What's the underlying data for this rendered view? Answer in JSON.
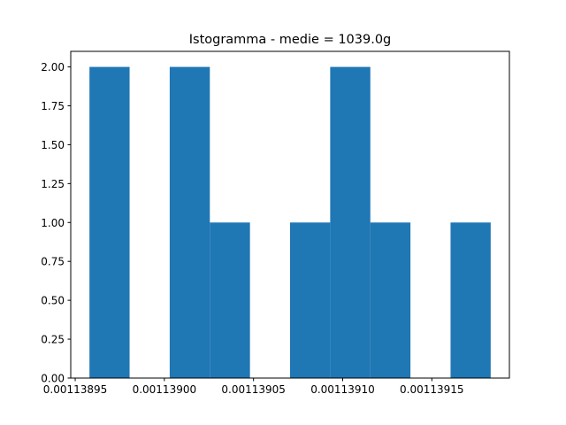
{
  "chart_data": {
    "type": "bar",
    "title": "Istogramma - medie = 1039.0g",
    "xlabel": "",
    "ylabel": "",
    "bins": [
      {
        "x0": 0.001138958,
        "x1": 0.0011389805,
        "count": 2
      },
      {
        "x0": 0.0011389805,
        "x1": 0.001139003,
        "count": 0
      },
      {
        "x0": 0.001139003,
        "x1": 0.0011390255,
        "count": 2
      },
      {
        "x0": 0.0011390255,
        "x1": 0.001139048,
        "count": 1
      },
      {
        "x0": 0.001139048,
        "x1": 0.0011390705,
        "count": 0
      },
      {
        "x0": 0.0011390705,
        "x1": 0.001139093,
        "count": 1
      },
      {
        "x0": 0.001139093,
        "x1": 0.0011391155,
        "count": 2
      },
      {
        "x0": 0.0011391155,
        "x1": 0.001139138,
        "count": 1
      },
      {
        "x0": 0.001139138,
        "x1": 0.0011391605,
        "count": 0
      },
      {
        "x0": 0.0011391605,
        "x1": 0.001139183,
        "count": 1
      }
    ],
    "xlim": [
      0.0011389475,
      0.0011391935
    ],
    "ylim": [
      0,
      2.1
    ],
    "xticks": [
      0.00113895,
      0.001139,
      0.00113905,
      0.0011391,
      0.00113915
    ],
    "xtick_labels": [
      "0.00113895",
      "0.00113900",
      "0.00113905",
      "0.00113910",
      "0.00113915"
    ],
    "yticks": [
      0,
      0.25,
      0.5,
      0.75,
      1.0,
      1.25,
      1.5,
      1.75,
      2.0
    ],
    "ytick_labels": [
      "0.00",
      "0.25",
      "0.50",
      "0.75",
      "1.00",
      "1.25",
      "1.50",
      "1.75",
      "2.00"
    ],
    "bar_color": "#1f77b4",
    "grid": false,
    "legend": false
  }
}
